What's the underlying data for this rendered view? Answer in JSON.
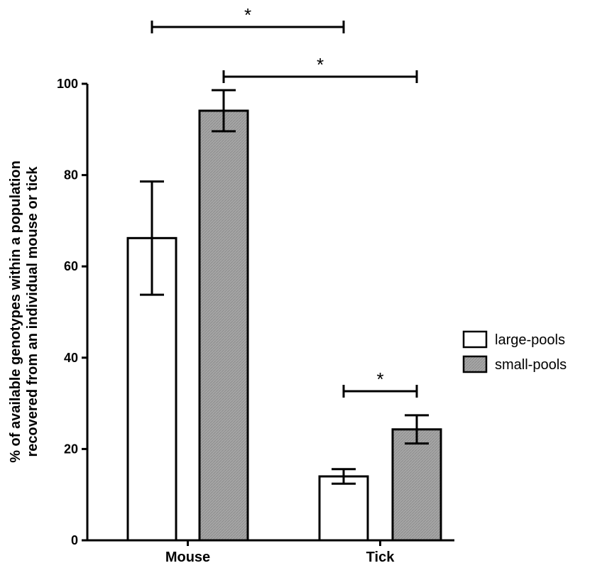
{
  "chart_data": {
    "type": "bar",
    "title": "",
    "xlabel": "",
    "ylabel_lines": [
      "% of available genotypes within a population",
      "recovered from an individual mouse or tick"
    ],
    "categories": [
      "Mouse",
      "Tick"
    ],
    "ylim": [
      0,
      100
    ],
    "yticks": [
      "0",
      "20",
      "40",
      "60",
      "80",
      "100"
    ],
    "grid": false,
    "legend_position": "right",
    "series": [
      {
        "name": "large-pools",
        "color": "#ffffff",
        "values": [
          66.2,
          14.0
        ],
        "error_low": [
          53.8,
          12.4
        ],
        "error_high": [
          78.6,
          15.6
        ]
      },
      {
        "name": "small-pools",
        "color": "#999999",
        "values": [
          94.1,
          24.3
        ],
        "error_low": [
          89.6,
          21.2
        ],
        "error_high": [
          98.6,
          27.4
        ]
      }
    ],
    "significance": [
      {
        "label": "*",
        "from": "Mouse:large-pools",
        "to": "Tick:large-pools"
      },
      {
        "label": "*",
        "from": "Mouse:small-pools",
        "to": "Tick:small-pools"
      },
      {
        "label": "*",
        "from": "Tick:large-pools",
        "to": "Tick:small-pools"
      }
    ]
  }
}
